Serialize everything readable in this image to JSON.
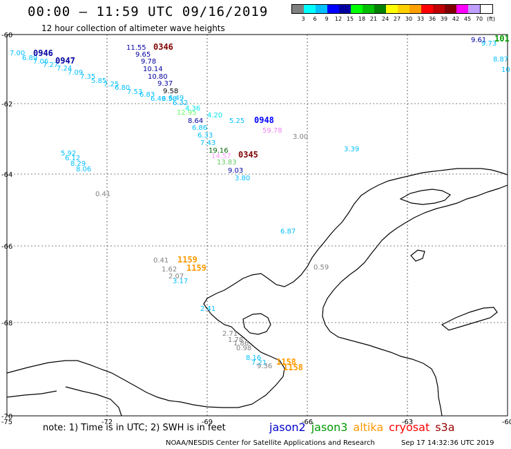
{
  "header": {
    "title": "00:00 – 11:59 UTC 09/16/2019",
    "subtitle": "12 hour collection of altimeter wave heights"
  },
  "legend": {
    "colors": [
      "#808080",
      "#00ffff",
      "#00c0ff",
      "#0000ff",
      "#0000a0",
      "#00ff00",
      "#00c000",
      "#008000",
      "#ffff00",
      "#ffd000",
      "#ffa000",
      "#ff0000",
      "#c00000",
      "#800000",
      "#ff00ff",
      "#c0a0ff",
      "#ffffff"
    ],
    "labels": [
      "3",
      "6",
      "9",
      "12",
      "15",
      "18",
      "21",
      "24",
      "27",
      "30",
      "33",
      "36",
      "39",
      "42",
      "45",
      "70",
      "(ft)"
    ]
  },
  "axes": {
    "lat_labels": [
      "-60",
      "-62",
      "-64",
      "-66",
      "-68",
      "-70"
    ],
    "lon_labels": [
      "-75",
      "-72",
      "-69",
      "-66",
      "-63",
      "-60"
    ]
  },
  "passes": [
    {
      "text": "0946",
      "color": "#0000a0"
    },
    {
      "text": "0947",
      "color": "#0000a0"
    },
    {
      "text": "0346",
      "color": "#800000"
    },
    {
      "text": "0948",
      "color": "#0000ff"
    },
    {
      "text": "0345",
      "color": "#800000"
    },
    {
      "text": "1159",
      "color": "#ff9900"
    },
    {
      "text": "1159",
      "color": "#ff9900"
    },
    {
      "text": "1158",
      "color": "#ff9900"
    },
    {
      "text": "1158",
      "color": "#ff9900"
    },
    {
      "text": "101",
      "color": "#009900"
    }
  ],
  "observations": [
    {
      "text": "7.00",
      "color": "#00bfff"
    },
    {
      "text": "6.89",
      "color": "#00bfff"
    },
    {
      "text": "7.06",
      "color": "#00bfff"
    },
    {
      "text": "7.27",
      "color": "#00bfff"
    },
    {
      "text": "7.24",
      "color": "#00bfff"
    },
    {
      "text": "7.09",
      "color": "#00bfff"
    },
    {
      "text": "7.35",
      "color": "#00bfff"
    },
    {
      "text": "5.85",
      "color": "#00bfff"
    },
    {
      "text": "7.25",
      "color": "#00bfff"
    },
    {
      "text": "6.80",
      "color": "#00bfff"
    },
    {
      "text": "7.53",
      "color": "#00bfff"
    },
    {
      "text": "6.83",
      "color": "#00bfff"
    },
    {
      "text": "6.49",
      "color": "#00bfff"
    },
    {
      "text": "6.58",
      "color": "#00bfff"
    },
    {
      "text": "6.32",
      "color": "#00bfff"
    },
    {
      "text": "11.55",
      "color": "#0000a0"
    },
    {
      "text": "9.65",
      "color": "#0000a0"
    },
    {
      "text": "9.78",
      "color": "#0000a0"
    },
    {
      "text": "10.14",
      "color": "#0000a0"
    },
    {
      "text": "10.80",
      "color": "#0000a0"
    },
    {
      "text": "9.37",
      "color": "#0000a0"
    },
    {
      "text": "9.58",
      "color": "#000000"
    },
    {
      "text": "6.49",
      "color": "#00bfff"
    },
    {
      "text": "12.95",
      "color": "#66ff66"
    },
    {
      "text": "4.36",
      "color": "#00e5ee"
    },
    {
      "text": "4.20",
      "color": "#00e5ee"
    },
    {
      "text": "5.25",
      "color": "#00bfff"
    },
    {
      "text": "8.64",
      "color": "#0000a0"
    },
    {
      "text": "6.86",
      "color": "#00bfff"
    },
    {
      "text": "59.78",
      "color": "#ee82ee"
    },
    {
      "text": "6.33",
      "color": "#00bfff"
    },
    {
      "text": "3.00",
      "color": "#808080"
    },
    {
      "text": "7.43",
      "color": "#00bfff"
    },
    {
      "text": "3.39",
      "color": "#00bfff"
    },
    {
      "text": "19.16",
      "color": "#006400"
    },
    {
      "text": "14.57",
      "color": "#ff99ff"
    },
    {
      "text": "13.83",
      "color": "#66cc66"
    },
    {
      "text": "9.03",
      "color": "#0000a0"
    },
    {
      "text": "3.80",
      "color": "#00bfff"
    },
    {
      "text": "5.92",
      "color": "#00bfff"
    },
    {
      "text": "6.12",
      "color": "#00bfff"
    },
    {
      "text": "8.29",
      "color": "#00bfff"
    },
    {
      "text": "8.06",
      "color": "#00bfff"
    },
    {
      "text": "0.41",
      "color": "#808080"
    },
    {
      "text": "6.87",
      "color": "#00bfff"
    },
    {
      "text": "0.41",
      "color": "#808080"
    },
    {
      "text": "1.62",
      "color": "#808080"
    },
    {
      "text": "2.07",
      "color": "#808080"
    },
    {
      "text": "3.17",
      "color": "#00bfff"
    },
    {
      "text": "0.59",
      "color": "#808080"
    },
    {
      "text": "2.41",
      "color": "#00bfff"
    },
    {
      "text": "2.71",
      "color": "#808080"
    },
    {
      "text": "1.78",
      "color": "#808080"
    },
    {
      "text": "1.86",
      "color": "#808080"
    },
    {
      "text": "0.98",
      "color": "#808080"
    },
    {
      "text": "8.16",
      "color": "#00bfff"
    },
    {
      "text": "7.21",
      "color": "#00bfff"
    },
    {
      "text": "9.36",
      "color": "#808080"
    },
    {
      "text": "9.61",
      "color": "#0000a0"
    },
    {
      "text": "9.73",
      "color": "#00bfff"
    },
    {
      "text": "8.87",
      "color": "#00bfff"
    },
    {
      "text": "10.",
      "color": "#00bfff"
    }
  ],
  "footer": {
    "note": "note: 1) Time is in UTC; 2) SWH is in feet",
    "missions": [
      {
        "name": "jason2",
        "color": "#0000cc"
      },
      {
        "name": "jason3",
        "color": "#009900"
      },
      {
        "name": "altika",
        "color": "#ff9900"
      },
      {
        "name": "cryosat",
        "color": "#ff0000"
      },
      {
        "name": "s3a",
        "color": "#990000"
      }
    ],
    "credit": "NOAA/NESDIS Center for Satellite Applications and Research",
    "timestamp": "Sep 17 14:32:36 UTC 2019"
  }
}
